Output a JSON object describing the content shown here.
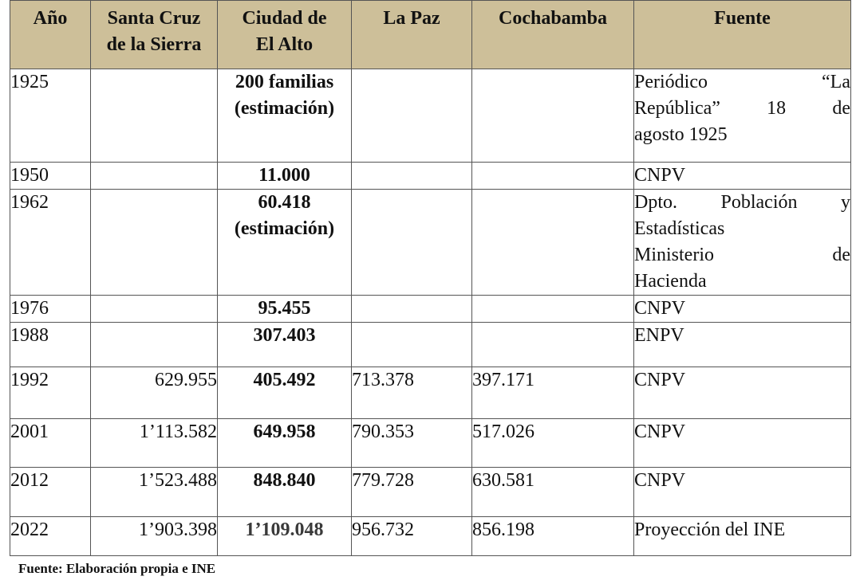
{
  "headers": [
    "Año",
    "Santa Cruz de la Sierra",
    "Ciudad de El Alto",
    "La Paz",
    "Cochabamba",
    "Fuente"
  ],
  "header_lines": [
    [
      "Año"
    ],
    [
      "Santa Cruz",
      "de la Sierra"
    ],
    [
      "Ciudad de",
      "El Alto"
    ],
    [
      "La Paz"
    ],
    [
      "Cochabamba"
    ],
    [
      "Fuente"
    ]
  ],
  "rows": [
    {
      "year": "1925",
      "santa_cruz": "",
      "el_alto": [
        "200 familias",
        "(estimación)"
      ],
      "la_paz": "",
      "cochabamba": "",
      "fuente": [
        "Periódico “La",
        "República” 18 de",
        "agosto 1925"
      ]
    },
    {
      "year": "1950",
      "santa_cruz": "",
      "el_alto": [
        "11.000"
      ],
      "la_paz": "",
      "cochabamba": "",
      "fuente": [
        "CNPV"
      ]
    },
    {
      "year": "1962",
      "santa_cruz": "",
      "el_alto": [
        "60.418",
        "(estimación)"
      ],
      "la_paz": "",
      "cochabamba": "",
      "fuente": [
        "Dpto. Población y",
        "Estadísticas",
        "Ministerio de",
        "Hacienda"
      ]
    },
    {
      "year": "1976",
      "santa_cruz": "",
      "el_alto": [
        "95.455"
      ],
      "la_paz": "",
      "cochabamba": "",
      "fuente": [
        "CNPV"
      ]
    },
    {
      "year": "1988",
      "santa_cruz": "",
      "el_alto": [
        "307.403"
      ],
      "la_paz": "",
      "cochabamba": "",
      "fuente": [
        "ENPV"
      ]
    },
    {
      "year": "1992",
      "santa_cruz": "629.955",
      "el_alto": [
        "405.492"
      ],
      "la_paz": "713.378",
      "cochabamba": "397.171",
      "fuente": [
        "CNPV"
      ]
    },
    {
      "year": "2001",
      "santa_cruz": "1’113.582",
      "el_alto": [
        "649.958"
      ],
      "la_paz": "790.353",
      "cochabamba": "517.026",
      "fuente": [
        "CNPV"
      ]
    },
    {
      "year": "2012",
      "santa_cruz": "1’523.488",
      "el_alto": [
        "848.840"
      ],
      "la_paz": "779.728",
      "cochabamba": "630.581",
      "fuente": [
        "CNPV"
      ]
    },
    {
      "year": "2022",
      "santa_cruz": "1’903.398",
      "el_alto": [
        "1’109.048"
      ],
      "la_paz": "956.732",
      "cochabamba": "856.198",
      "fuente": [
        "Proyección del INE"
      ]
    }
  ],
  "footnote": "Fuente: Elaboración propia e INE",
  "colors": {
    "header_bg": "#cdbf99",
    "border": "#555555",
    "el_alto_2022": "#3a3a3a"
  }
}
